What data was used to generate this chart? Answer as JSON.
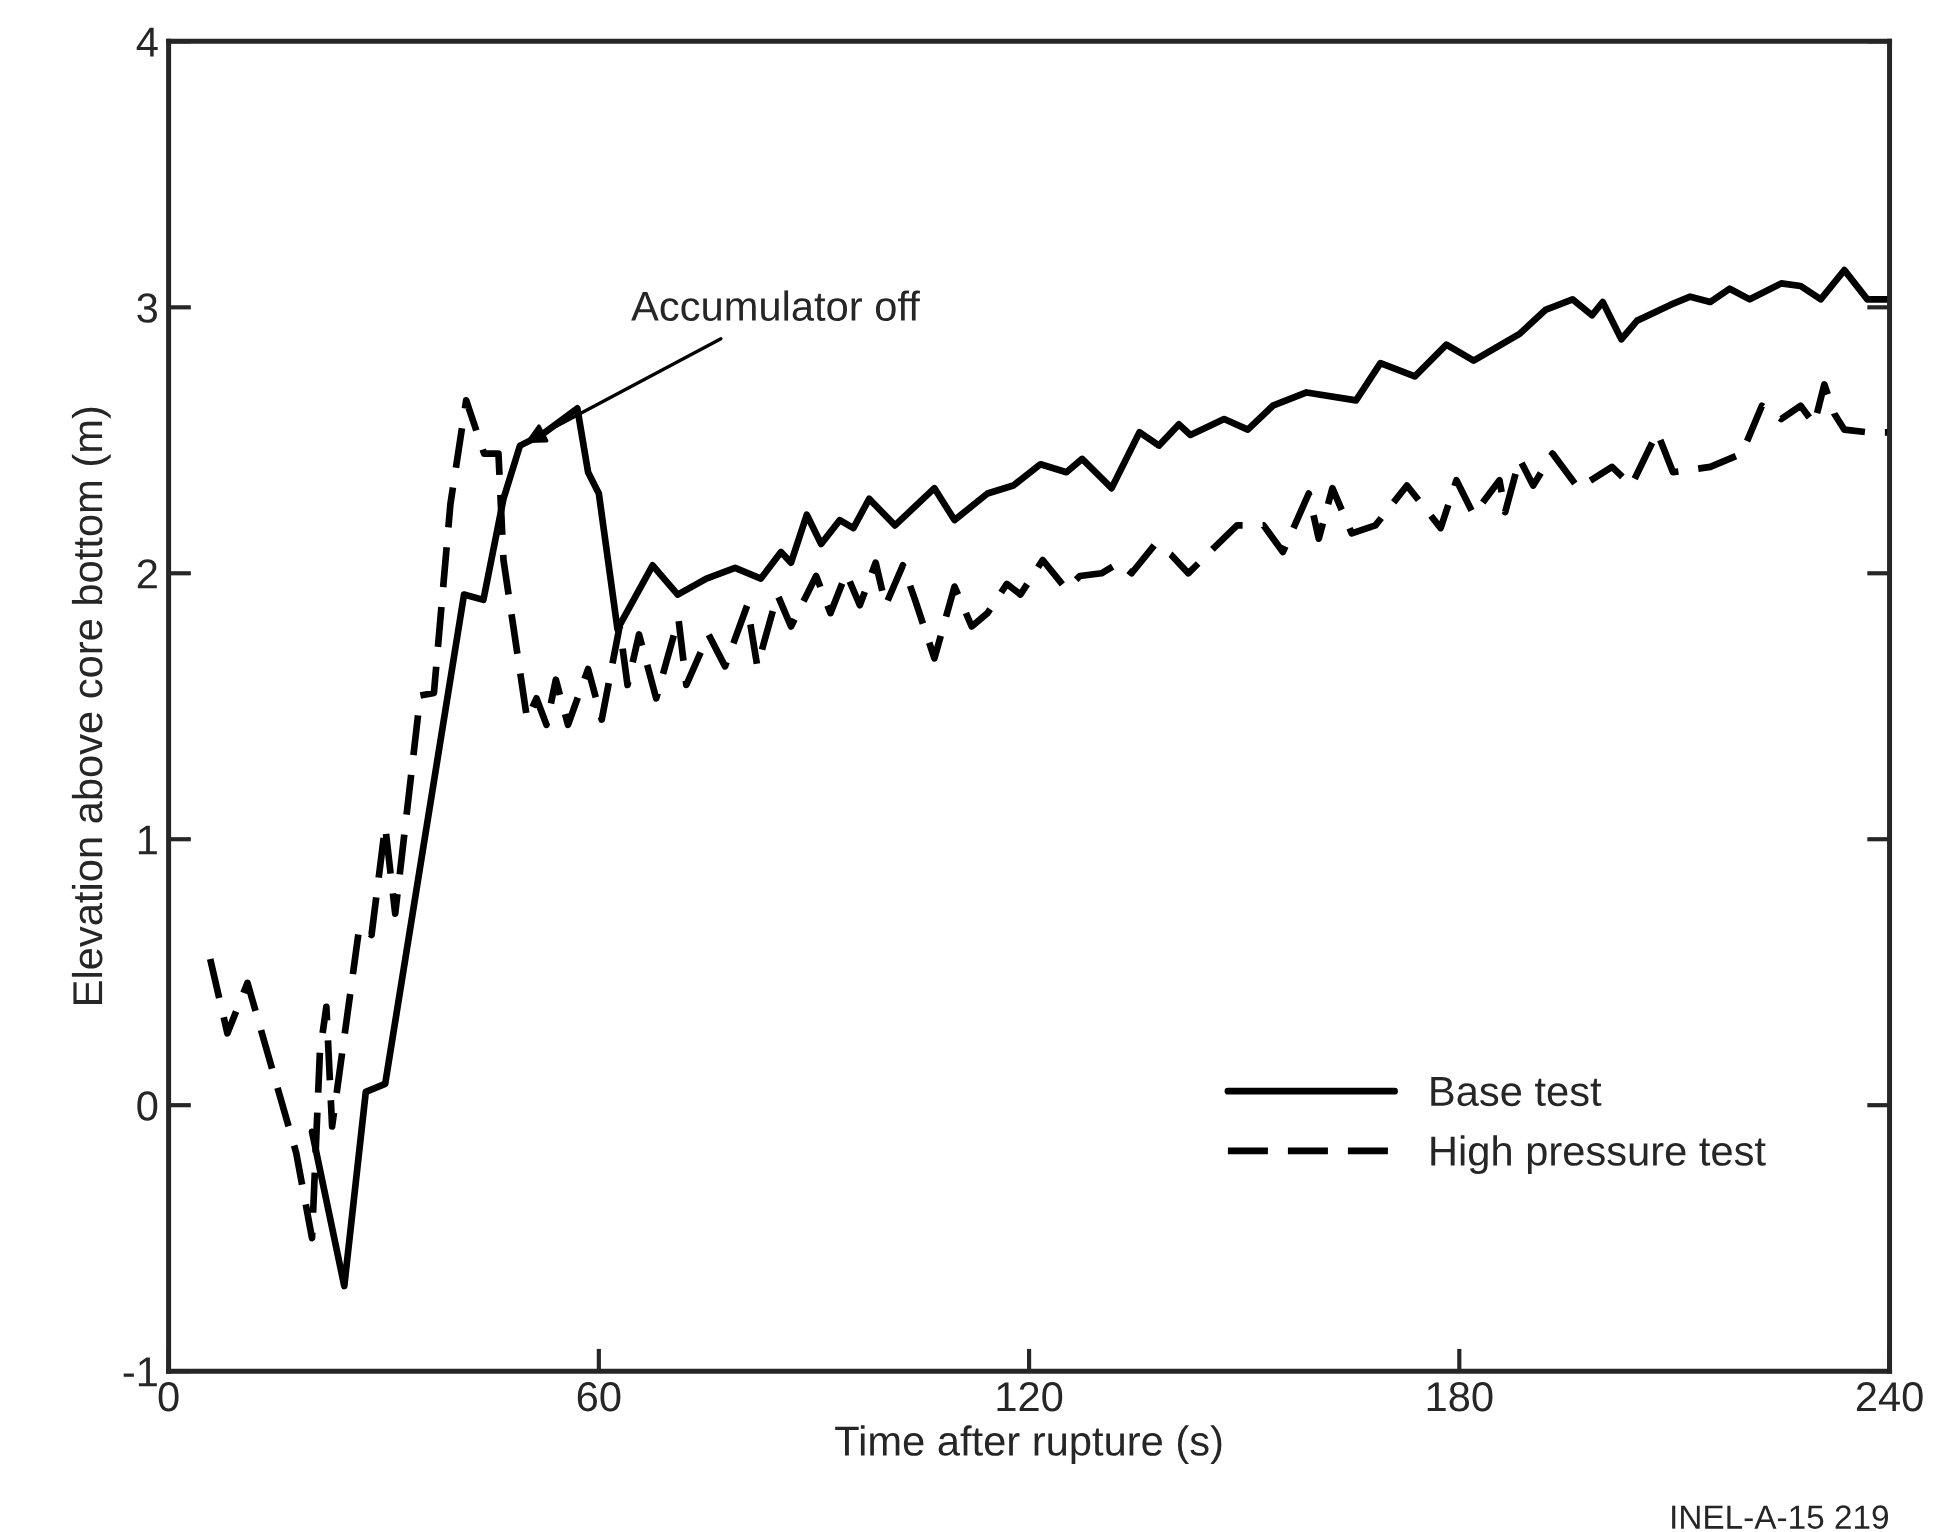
{
  "chart_data": {
    "type": "line",
    "xlabel": "Time after rupture (s)",
    "ylabel": "Elevation above core bottom (m)",
    "xlim": [
      0,
      240
    ],
    "xticks": [
      0,
      60,
      120,
      180,
      240
    ],
    "ylim": [
      -1,
      4
    ],
    "yticks": [
      -1,
      0,
      1,
      2,
      3,
      4
    ],
    "grid": false,
    "legend": "bottom right",
    "marker": "none",
    "annotations": [
      {
        "text": "Accumulator off",
        "x": 49,
        "y": 2.48
      },
      "INEL-A-15 219"
    ],
    "series": [
      {
        "name": "Base test",
        "color": "#000000",
        "line_style": "solid",
        "x": [
          20,
          24.5,
          27.5,
          30.2,
          41.2,
          43.9,
          46.7,
          49,
          52,
          57,
          58.5,
          60,
          62.6,
          67.5,
          71,
          75,
          79,
          82.6,
          85.4,
          86.8,
          89,
          91,
          93.6,
          95.5,
          97.7,
          101.3,
          106.8,
          109.6,
          114.2,
          117.8,
          121.6,
          125.2,
          127.4,
          131.5,
          135.4,
          138.1,
          140.9,
          142.5,
          147.2,
          150.5,
          154,
          158.7,
          165.6,
          169,
          173.8,
          178.2,
          182,
          188.4,
          192,
          195.8,
          198.5,
          200,
          202.6,
          204.8,
          209.5,
          212.2,
          215,
          217.7,
          220.5,
          224.9,
          227.6,
          230.4,
          233.7,
          236.9,
          240
        ],
        "values": [
          -0.1,
          -0.68,
          0.05,
          0.08,
          1.92,
          1.9,
          2.28,
          2.48,
          2.52,
          2.62,
          2.38,
          2.3,
          1.79,
          2.03,
          1.92,
          1.98,
          2.02,
          1.98,
          2.08,
          2.04,
          2.22,
          2.11,
          2.2,
          2.17,
          2.28,
          2.18,
          2.32,
          2.2,
          2.3,
          2.33,
          2.41,
          2.38,
          2.43,
          2.32,
          2.53,
          2.48,
          2.56,
          2.52,
          2.58,
          2.54,
          2.63,
          2.68,
          2.65,
          2.79,
          2.74,
          2.86,
          2.8,
          2.9,
          2.99,
          3.03,
          2.97,
          3.02,
          2.88,
          2.95,
          3.01,
          3.04,
          3.02,
          3.07,
          3.03,
          3.09,
          3.08,
          3.03,
          3.14,
          3.03,
          3.03
        ]
      },
      {
        "name": "High pressure test",
        "color": "#000000",
        "line_style": "dashed",
        "x": [
          5.8,
          8.2,
          11,
          17.8,
          20,
          21.1,
          22,
          22.8,
          26.6,
          28.3,
          30.2,
          31.6,
          35.1,
          37,
          39.3,
          41.5,
          44,
          46,
          46.7,
          50,
          51.3,
          52.7,
          54,
          55.7,
          58.5,
          60.4,
          62.9,
          64,
          65.6,
          68,
          71.1,
          72.2,
          75.3,
          77.6,
          80.7,
          82.1,
          84.9,
          86.8,
          90.3,
          92.3,
          94.5,
          96.4,
          98.6,
          100,
          102.4,
          104.1,
          106.8,
          109.6,
          112,
          114.2,
          116.9,
          118.8,
          121.9,
          125.2,
          127.1,
          130.1,
          132.6,
          134.3,
          137.6,
          139.8,
          142.2,
          145.2,
          149,
          152.7,
          155.4,
          159,
          160.4,
          162.3,
          165,
          168.3,
          172.7,
          177.4,
          179.6,
          182,
          185.6,
          186.4,
          188.4,
          190.3,
          193,
          196.6,
          201.3,
          204,
          207.6,
          209.8,
          215,
          219.4,
          222.2,
          224.9,
          227.6,
          229.5,
          230.9,
          232.3,
          233.7,
          236.9,
          240
        ],
        "values": [
          0.55,
          0.27,
          0.46,
          -0.18,
          -0.5,
          0.2,
          0.37,
          -0.08,
          0.67,
          0.64,
          1.05,
          0.72,
          1.54,
          1.55,
          2.26,
          2.65,
          2.45,
          2.45,
          2.05,
          1.45,
          1.53,
          1.43,
          1.6,
          1.43,
          1.64,
          1.45,
          1.8,
          1.58,
          1.77,
          1.53,
          1.83,
          1.58,
          1.77,
          1.65,
          1.88,
          1.65,
          1.92,
          1.8,
          1.99,
          1.85,
          2.0,
          1.88,
          2.04,
          1.88,
          2.03,
          1.9,
          1.68,
          1.95,
          1.8,
          1.85,
          1.96,
          1.92,
          2.05,
          1.94,
          1.99,
          2.0,
          2.04,
          2.0,
          2.11,
          2.07,
          2.0,
          2.08,
          2.18,
          2.18,
          2.08,
          2.3,
          2.13,
          2.32,
          2.15,
          2.18,
          2.33,
          2.17,
          2.35,
          2.22,
          2.35,
          2.23,
          2.43,
          2.33,
          2.45,
          2.32,
          2.4,
          2.33,
          2.53,
          2.38,
          2.4,
          2.45,
          2.63,
          2.58,
          2.63,
          2.56,
          2.71,
          2.6,
          2.54,
          2.53,
          2.53
        ]
      }
    ]
  }
}
